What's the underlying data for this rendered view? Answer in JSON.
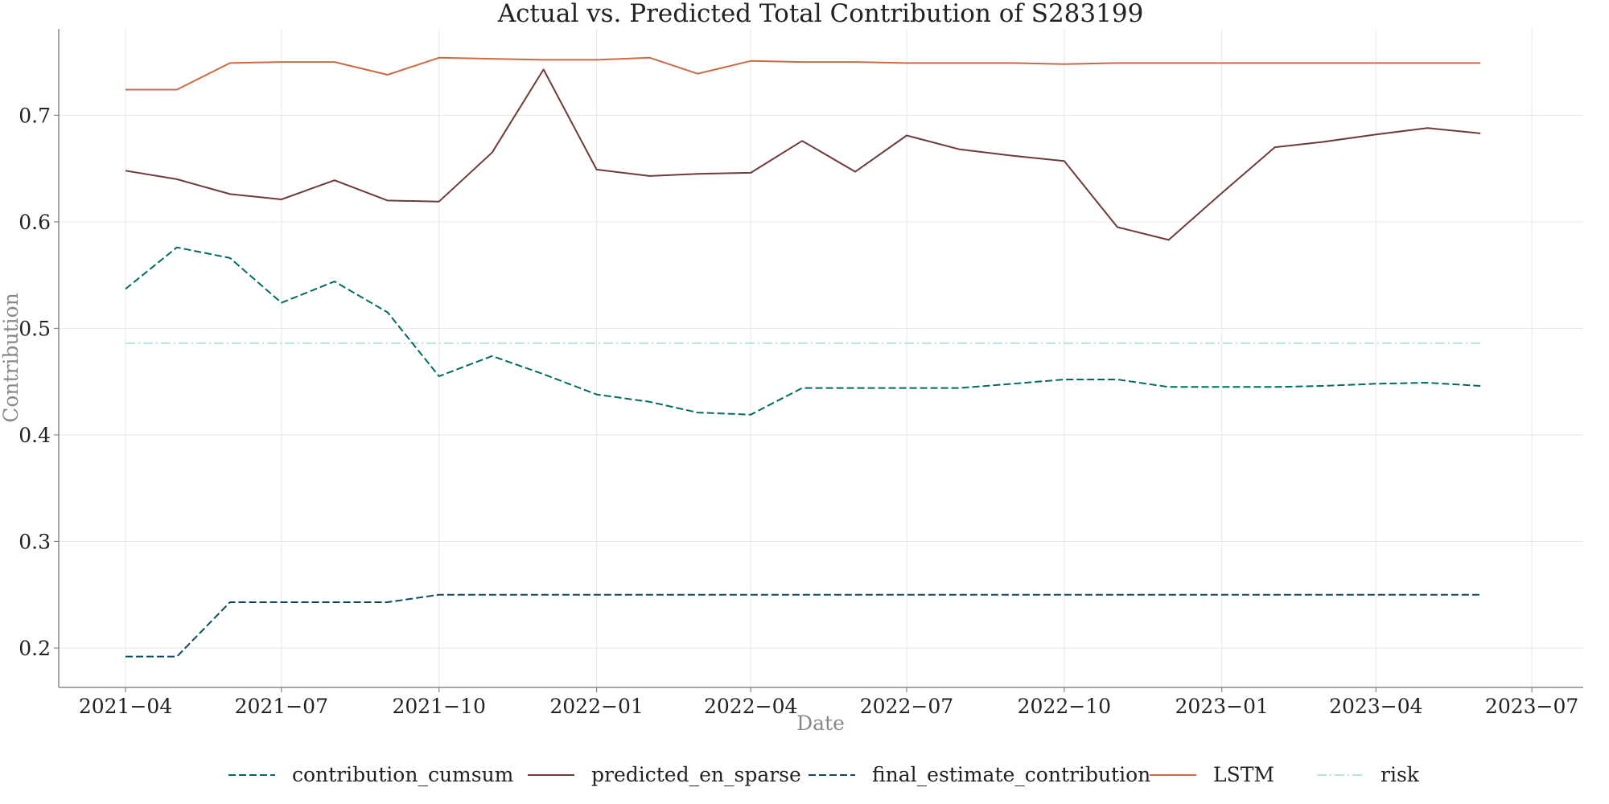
{
  "chart_data": {
    "type": "line",
    "title": "Actual vs. Predicted Total Contribution of S283199",
    "xlabel": "Date",
    "ylabel": "Contribution",
    "xlim": [
      "2021-02-21",
      "2023-07-31"
    ],
    "ylim": [
      0.163,
      0.781
    ],
    "x_ticks": [
      "2021-04-01",
      "2021-07-01",
      "2021-10-01",
      "2022-01-01",
      "2022-04-01",
      "2022-07-01",
      "2022-10-01",
      "2023-01-01",
      "2023-04-01",
      "2023-07-01"
    ],
    "x_tick_labels": [
      "2021−04",
      "2021−07",
      "2021−10",
      "2022−01",
      "2022−04",
      "2022−07",
      "2022−10",
      "2023−01",
      "2023−04",
      "2023−07"
    ],
    "y_ticks": [
      0.2,
      0.3,
      0.4,
      0.5,
      0.6,
      0.7
    ],
    "y_tick_labels": [
      "0.2",
      "0.3",
      "0.4",
      "0.5",
      "0.6",
      "0.7"
    ],
    "grid": true,
    "legend_position": "bottom",
    "x": [
      "2021-04-01",
      "2021-05-01",
      "2021-06-01",
      "2021-07-01",
      "2021-08-01",
      "2021-09-01",
      "2021-10-01",
      "2021-11-01",
      "2021-12-01",
      "2022-01-01",
      "2022-02-01",
      "2022-03-01",
      "2022-04-01",
      "2022-05-01",
      "2022-06-01",
      "2022-07-01",
      "2022-08-01",
      "2022-09-01",
      "2022-10-01",
      "2022-11-01",
      "2022-12-01",
      "2023-01-01",
      "2023-02-01",
      "2023-03-01",
      "2023-04-01",
      "2023-05-01",
      "2023-06-01"
    ],
    "series": [
      {
        "name": "contribution_cumsum",
        "color": "#006b5f",
        "style": "dashed",
        "values": [
          0.537,
          0.576,
          0.566,
          0.524,
          0.544,
          0.515,
          0.455,
          0.474,
          0.457,
          0.438,
          0.431,
          0.421,
          0.419,
          0.444,
          0.444,
          0.444,
          0.444,
          0.448,
          0.452,
          0.452,
          0.445,
          0.445,
          0.445,
          0.446,
          0.448,
          0.449,
          0.446
        ]
      },
      {
        "name": "predicted_en_sparse",
        "color": "#6e3a3a",
        "style": "solid",
        "values": [
          0.648,
          0.64,
          0.626,
          0.621,
          0.639,
          0.62,
          0.619,
          0.665,
          0.743,
          0.649,
          0.643,
          0.645,
          0.646,
          0.676,
          0.647,
          0.681,
          0.668,
          0.662,
          0.657,
          0.595,
          0.583,
          0.627,
          0.67,
          0.675,
          0.682,
          0.688,
          0.683
        ]
      },
      {
        "name": "final_estimate_contribution",
        "color": "#0d4a5e",
        "style": "dashed",
        "values": [
          0.192,
          0.192,
          0.243,
          0.243,
          0.243,
          0.243,
          0.25,
          0.25,
          0.25,
          0.25,
          0.25,
          0.25,
          0.25,
          0.25,
          0.25,
          0.25,
          0.25,
          0.25,
          0.25,
          0.25,
          0.25,
          0.25,
          0.25,
          0.25,
          0.25,
          0.25,
          0.25
        ]
      },
      {
        "name": "LSTM",
        "color": "#cc6a45",
        "style": "solid",
        "values": [
          0.724,
          0.724,
          0.749,
          0.75,
          0.75,
          0.738,
          0.754,
          0.753,
          0.752,
          0.752,
          0.754,
          0.739,
          0.751,
          0.75,
          0.75,
          0.749,
          0.749,
          0.749,
          0.748,
          0.749,
          0.749,
          0.749,
          0.749,
          0.749,
          0.749,
          0.749,
          0.749
        ]
      },
      {
        "name": "risk",
        "color": "#b9e3e0",
        "style": "dashdot",
        "values": [
          0.486,
          0.486,
          0.486,
          0.486,
          0.486,
          0.486,
          0.486,
          0.486,
          0.486,
          0.486,
          0.486,
          0.486,
          0.486,
          0.486,
          0.486,
          0.486,
          0.486,
          0.486,
          0.486,
          0.486,
          0.486,
          0.486,
          0.486,
          0.486,
          0.486,
          0.486,
          0.486
        ]
      }
    ]
  }
}
